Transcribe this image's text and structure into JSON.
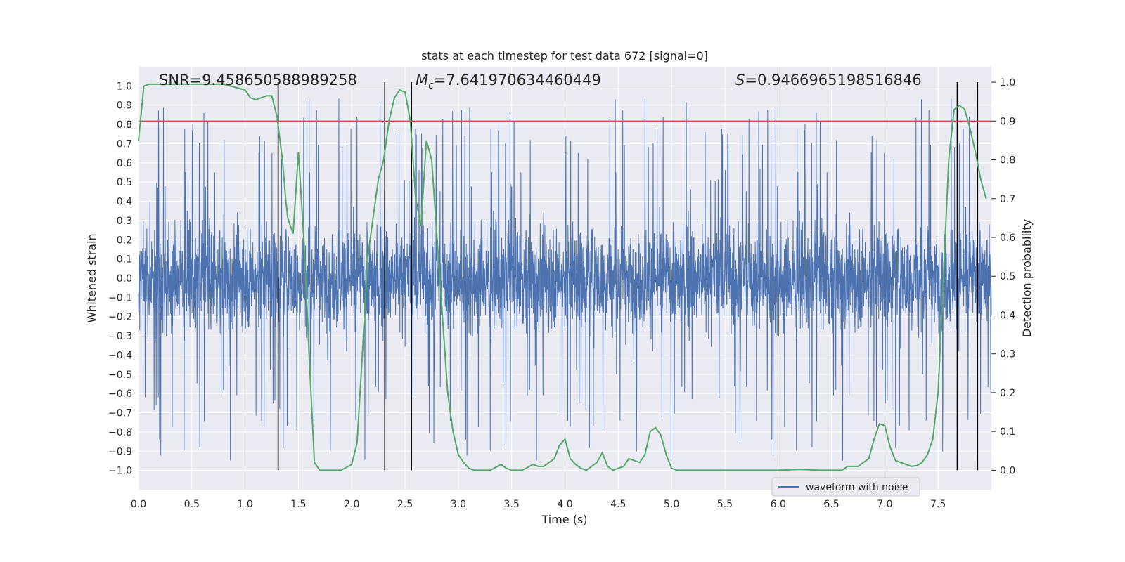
{
  "chart_data": {
    "type": "line",
    "title": "stats at each timestep for test data 672 [signal=0]",
    "xlabel": "Time (s)",
    "ylabel": "Whitened strain",
    "y2label": "Detection probability",
    "xlim": [
      0.0,
      8.0
    ],
    "ylim": [
      -1.1,
      1.1
    ],
    "y2lim": [
      -0.05,
      1.04
    ],
    "xticks": [
      "0.0",
      "0.5",
      "1.0",
      "1.5",
      "2.0",
      "2.5",
      "3.0",
      "3.5",
      "4.0",
      "4.5",
      "5.0",
      "5.5",
      "6.0",
      "6.5",
      "7.0",
      "7.5"
    ],
    "xtick_values": [
      0.0,
      0.5,
      1.0,
      1.5,
      2.0,
      2.5,
      3.0,
      3.5,
      4.0,
      4.5,
      5.0,
      5.5,
      6.0,
      6.5,
      7.0,
      7.5
    ],
    "yticks": [
      "1.0",
      "0.9",
      "0.8",
      "0.7",
      "0.6",
      "0.5",
      "0.4",
      "0.3",
      "0.2",
      "0.1",
      "0.0",
      "−0.1",
      "−0.2",
      "−0.3",
      "−0.4",
      "−0.5",
      "−0.6",
      "−0.7",
      "−0.8",
      "−0.9",
      "−1.0"
    ],
    "ytick_values": [
      1.0,
      0.9,
      0.8,
      0.7,
      0.6,
      0.5,
      0.4,
      0.3,
      0.2,
      0.1,
      0.0,
      -0.1,
      -0.2,
      -0.3,
      -0.4,
      -0.5,
      -0.6,
      -0.7,
      -0.8,
      -0.9,
      -1.0
    ],
    "y2ticks": [
      "1.0",
      "0.9",
      "0.8",
      "0.7",
      "0.6",
      "0.5",
      "0.4",
      "0.3",
      "0.2",
      "0.1",
      "0.0"
    ],
    "y2tick_values": [
      1.0,
      0.9,
      0.8,
      0.7,
      0.6,
      0.5,
      0.4,
      0.3,
      0.2,
      0.1,
      0.0
    ],
    "annotations": {
      "snr": "SNR=9.458650588989258",
      "mc_symbol": "M",
      "mc_subscript": "c",
      "mc_value": "=7.641970634460449",
      "s_symbol": "S",
      "s_value": "=0.9466965198516846"
    },
    "legend": {
      "label": "waveform with noise",
      "location": "lower-right"
    },
    "threshold": {
      "y2": 0.9,
      "color": "#c44e52"
    },
    "vertical_lines": [
      1.31,
      2.31,
      2.56,
      7.68,
      7.87
    ],
    "vline_range_y2": [
      0.0,
      1.0
    ],
    "waveform": {
      "name": "waveform with noise",
      "color": "#4c72b0",
      "samples": 4096,
      "core_amplitude": 0.42,
      "outlier_amplitude": 0.8,
      "seed": 672
    },
    "series": [
      {
        "name": "Detection probability",
        "axis": "y2",
        "color": "#55a868",
        "x": [
          0.0,
          0.05,
          0.1,
          0.2,
          0.3,
          0.5,
          0.8,
          1.0,
          1.05,
          1.1,
          1.15,
          1.2,
          1.25,
          1.3,
          1.35,
          1.38,
          1.4,
          1.45,
          1.5,
          1.55,
          1.6,
          1.65,
          1.7,
          1.8,
          1.9,
          2.0,
          2.05,
          2.1,
          2.15,
          2.2,
          2.25,
          2.3,
          2.35,
          2.4,
          2.45,
          2.5,
          2.55,
          2.6,
          2.65,
          2.7,
          2.75,
          2.8,
          2.85,
          2.9,
          2.95,
          3.0,
          3.05,
          3.1,
          3.15,
          3.2,
          3.3,
          3.4,
          3.45,
          3.5,
          3.6,
          3.7,
          3.75,
          3.8,
          3.9,
          3.95,
          4.0,
          4.05,
          4.1,
          4.15,
          4.2,
          4.3,
          4.35,
          4.4,
          4.45,
          4.5,
          4.55,
          4.6,
          4.7,
          4.75,
          4.8,
          4.85,
          4.9,
          4.95,
          5.0,
          5.05,
          5.1,
          5.15,
          5.2,
          5.3,
          5.5,
          6.0,
          6.2,
          6.4,
          6.6,
          6.65,
          6.7,
          6.75,
          6.8,
          6.85,
          6.9,
          6.95,
          7.0,
          7.05,
          7.1,
          7.2,
          7.25,
          7.3,
          7.35,
          7.4,
          7.45,
          7.5,
          7.55,
          7.6,
          7.65,
          7.7,
          7.75,
          7.8,
          7.85,
          7.9,
          7.95
        ],
        "values": [
          0.85,
          0.99,
          0.995,
          0.995,
          0.995,
          0.995,
          0.995,
          0.98,
          0.96,
          0.955,
          0.96,
          0.965,
          0.965,
          0.91,
          0.8,
          0.7,
          0.65,
          0.61,
          0.82,
          0.6,
          0.3,
          0.02,
          0.0,
          0.0,
          0.0,
          0.015,
          0.07,
          0.3,
          0.55,
          0.65,
          0.75,
          0.8,
          0.9,
          0.96,
          0.98,
          0.975,
          0.9,
          0.7,
          0.63,
          0.85,
          0.8,
          0.6,
          0.4,
          0.2,
          0.1,
          0.04,
          0.02,
          0.005,
          0.0,
          0.0,
          0.0,
          0.015,
          0.005,
          0.0,
          0.0,
          0.015,
          0.01,
          0.01,
          0.03,
          0.065,
          0.08,
          0.03,
          0.015,
          0.005,
          0.0,
          0.02,
          0.045,
          0.01,
          0.0,
          0.005,
          0.01,
          0.03,
          0.02,
          0.04,
          0.1,
          0.11,
          0.09,
          0.04,
          0.005,
          0.0,
          0.0,
          0.0,
          0.0,
          0.0,
          0.0,
          0.0,
          0.002,
          0.0,
          0.0,
          0.01,
          0.01,
          0.01,
          0.02,
          0.03,
          0.08,
          0.12,
          0.115,
          0.06,
          0.025,
          0.015,
          0.01,
          0.012,
          0.02,
          0.04,
          0.08,
          0.2,
          0.5,
          0.8,
          0.93,
          0.94,
          0.93,
          0.88,
          0.82,
          0.75,
          0.7
        ],
        "values_note": "estimated from image"
      }
    ]
  }
}
